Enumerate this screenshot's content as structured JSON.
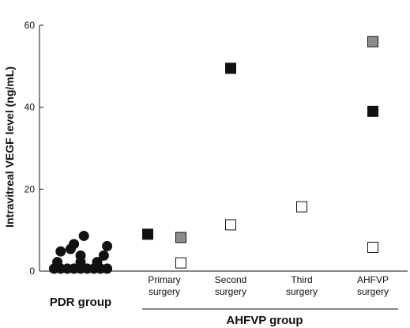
{
  "chart_data": {
    "type": "scatter",
    "ylabel": "Intravitreal VEGF level (ng/mL)",
    "ylim": [
      0,
      60
    ],
    "yticks": [
      0,
      20,
      40,
      60
    ],
    "categories": [
      "PDR group",
      "Primary surgery",
      "Second surgery",
      "Third surgery",
      "AHFVP surgery"
    ],
    "category_label_lines": [
      [
        "PDR group"
      ],
      [
        "Primary",
        "surgery"
      ],
      [
        "Second",
        "surgery"
      ],
      [
        "Third",
        "surgery"
      ],
      [
        "AHFVP",
        "surgery"
      ]
    ],
    "group_label": "AHFVP group",
    "colors": {
      "black": "#111111",
      "gray": "#8c8c8c",
      "white": "#ffffff",
      "axis": "#111111"
    },
    "pdr_points": [
      {
        "x": -0.4,
        "y": 0.4
      },
      {
        "x": -0.3,
        "y": 0.4
      },
      {
        "x": -0.2,
        "y": 0.4
      },
      {
        "x": -0.1,
        "y": 0.4
      },
      {
        "x": 0.0,
        "y": 0.4
      },
      {
        "x": 0.1,
        "y": 0.4
      },
      {
        "x": 0.2,
        "y": 0.4
      },
      {
        "x": 0.3,
        "y": 0.4
      },
      {
        "x": 0.4,
        "y": 0.4
      },
      {
        "x": -0.35,
        "y": 2.0
      },
      {
        "x": 0.0,
        "y": 2.0
      },
      {
        "x": 0.25,
        "y": 2.0
      },
      {
        "x": -0.3,
        "y": 4.6
      },
      {
        "x": -0.15,
        "y": 5.2
      },
      {
        "x": 0.0,
        "y": 3.6
      },
      {
        "x": 0.35,
        "y": 3.6
      },
      {
        "x": -0.1,
        "y": 6.4
      },
      {
        "x": 0.4,
        "y": 5.9
      },
      {
        "x": 0.05,
        "y": 8.4
      }
    ],
    "surgery_points": [
      {
        "category": "Primary surgery",
        "offset": -0.25,
        "y": 9.0,
        "fill": "black"
      },
      {
        "category": "Primary surgery",
        "offset": 0.25,
        "y": 8.2,
        "fill": "gray"
      },
      {
        "category": "Primary surgery",
        "offset": 0.25,
        "y": 2.0,
        "fill": "white"
      },
      {
        "category": "Second surgery",
        "offset": 0.0,
        "y": 49.5,
        "fill": "black"
      },
      {
        "category": "Second surgery",
        "offset": 0.0,
        "y": 11.3,
        "fill": "white"
      },
      {
        "category": "Third surgery",
        "offset": 0.0,
        "y": 15.7,
        "fill": "white"
      },
      {
        "category": "AHFVP surgery",
        "offset": 0.0,
        "y": 56.0,
        "fill": "gray"
      },
      {
        "category": "AHFVP surgery",
        "offset": 0.0,
        "y": 39.0,
        "fill": "black"
      },
      {
        "category": "AHFVP surgery",
        "offset": 0.0,
        "y": 5.8,
        "fill": "white"
      }
    ]
  }
}
